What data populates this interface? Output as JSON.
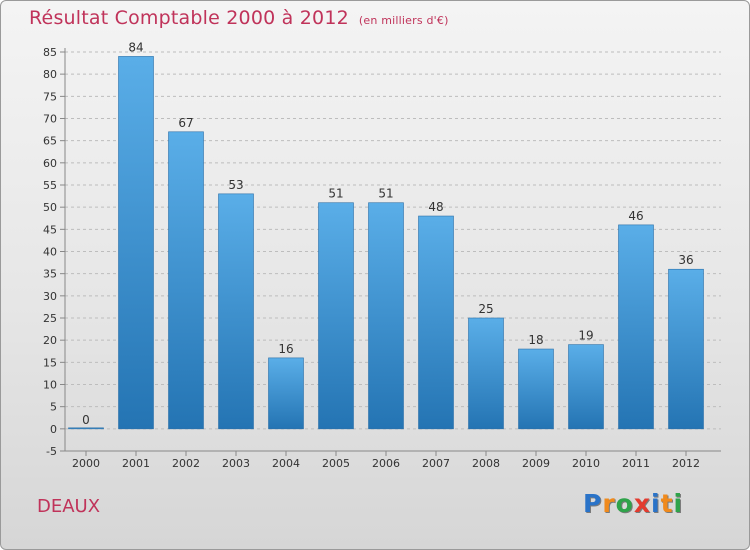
{
  "title": "Résultat Comptable 2000 à 2012",
  "unit_label": "(en milliers d'€)",
  "commune": "DEAUX",
  "logo": {
    "letters": [
      "P",
      "r",
      "o",
      "x",
      "i",
      "t",
      "i"
    ],
    "colors": [
      "#2a73c8",
      "#f08a1c",
      "#2fa34a",
      "#e33b2f",
      "#2a73c8",
      "#f08a1c",
      "#2fa34a"
    ]
  },
  "colors": {
    "title": "#c0335a",
    "bar_top": "#5aaee8",
    "bar_bottom": "#2474b3",
    "grid": "#bdbdbd",
    "axis_text": "#333333"
  },
  "chart_data": {
    "type": "bar",
    "title": "Résultat Comptable 2000 à 2012",
    "ylabel": "(en milliers d'€)",
    "xlabel": "",
    "categories": [
      "2000",
      "2001",
      "2002",
      "2003",
      "2004",
      "2005",
      "2006",
      "2007",
      "2008",
      "2009",
      "2010",
      "2011",
      "2012"
    ],
    "values": [
      0,
      84,
      67,
      53,
      16,
      51,
      51,
      48,
      25,
      18,
      19,
      46,
      36
    ],
    "ylim": [
      -5,
      85
    ],
    "yticks": [
      -5,
      0,
      5,
      10,
      15,
      20,
      25,
      30,
      35,
      40,
      45,
      50,
      55,
      60,
      65,
      70,
      75,
      80,
      85
    ],
    "grid": true,
    "legend": "none"
  }
}
